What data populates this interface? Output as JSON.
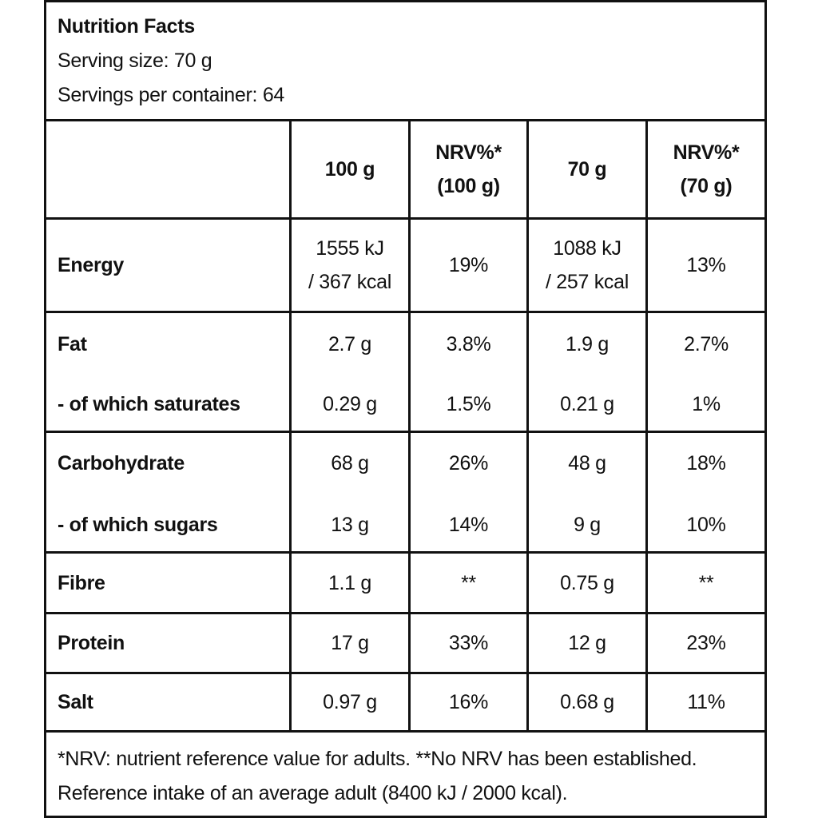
{
  "header": {
    "title": "Nutrition Facts",
    "serving_size": "Serving size: 70 g",
    "servings_per_container": "Servings per container: 64"
  },
  "columns": {
    "c1": "100 g",
    "c2_line1": "NRV%*",
    "c2_line2": "(100 g)",
    "c3": "70 g",
    "c4_line1": "NRV%*",
    "c4_line2": "(70 g)"
  },
  "rows": {
    "energy": {
      "label": "Energy",
      "v100_line1": "1555 kJ",
      "v100_line2": "/ 367 kcal",
      "nrv100": "19%",
      "v70_line1": "1088 kJ",
      "v70_line2": "/ 257 kcal",
      "nrv70": "13%"
    },
    "fat": {
      "label": "Fat",
      "v100": "2.7 g",
      "nrv100": "3.8%",
      "v70": "1.9 g",
      "nrv70": "2.7%"
    },
    "saturates": {
      "label": "- of which saturates",
      "v100": "0.29 g",
      "nrv100": "1.5%",
      "v70": "0.21 g",
      "nrv70": "1%"
    },
    "carbohydrate": {
      "label": "Carbohydrate",
      "v100": "68 g",
      "nrv100": "26%",
      "v70": "48 g",
      "nrv70": "18%"
    },
    "sugars": {
      "label": "- of which sugars",
      "v100": "13 g",
      "nrv100": "14%",
      "v70": "9 g",
      "nrv70": "10%"
    },
    "fibre": {
      "label": "Fibre",
      "v100": "1.1 g",
      "nrv100": "**",
      "v70": "0.75 g",
      "nrv70": "**"
    },
    "protein": {
      "label": "Protein",
      "v100": "17 g",
      "nrv100": "33%",
      "v70": "12 g",
      "nrv70": "23%"
    },
    "salt": {
      "label": "Salt",
      "v100": "0.97 g",
      "nrv100": "16%",
      "v70": "0.68 g",
      "nrv70": "11%"
    }
  },
  "footer": {
    "line1": "*NRV: nutrient reference value for adults. **No NRV has been established.",
    "line2": "Reference intake of an average adult (8400 kJ / 2000 kcal)."
  }
}
